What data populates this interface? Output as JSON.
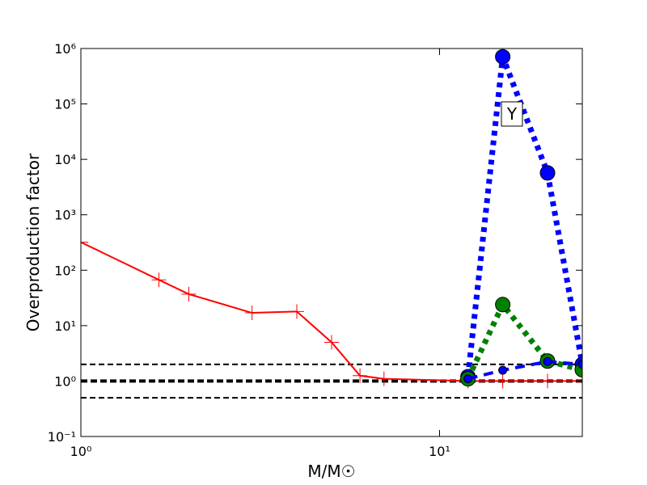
{
  "chart_data": {
    "type": "line",
    "xlabel": "M/M☉",
    "ylabel": "Overproduction factor",
    "xscale": "log",
    "yscale": "log",
    "xlim": [
      1,
      25
    ],
    "ylim": [
      0.1,
      1000000
    ],
    "xticks": [
      {
        "value": 1,
        "label": "10⁰"
      },
      {
        "value": 10,
        "label": "10¹"
      }
    ],
    "yticks": [
      {
        "value": 0.1,
        "label": "10⁻¹"
      },
      {
        "value": 1,
        "label": "10⁰"
      },
      {
        "value": 10,
        "label": "10¹"
      },
      {
        "value": 100,
        "label": "10²"
      },
      {
        "value": 1000,
        "label": "10³"
      },
      {
        "value": 10000,
        "label": "10⁴"
      },
      {
        "value": 100000,
        "label": "10⁵"
      },
      {
        "value": 1000000,
        "label": "10⁶"
      }
    ],
    "reference_lines": [
      0.5,
      1,
      2
    ],
    "annotation": "Y",
    "series": [
      {
        "color": "#ff0000",
        "style": "solid",
        "marker": "plus",
        "x": [
          1,
          1.65,
          2,
          3,
          4,
          5,
          6,
          7,
          12,
          15,
          20,
          25
        ],
        "values": [
          320,
          67,
          37,
          17,
          18,
          5,
          1.25,
          1.1,
          1.0,
          1.0,
          1.0,
          1.0
        ]
      },
      {
        "color": "#0000ff",
        "style": "dotted",
        "marker": "circle",
        "x": [
          12,
          15,
          20,
          25
        ],
        "values": [
          1.2,
          710000,
          5700,
          2.0
        ]
      },
      {
        "color": "#008000",
        "style": "dotted",
        "marker": "circle",
        "x": [
          12,
          15,
          20,
          25
        ],
        "values": [
          1.1,
          24,
          2.3,
          1.6
        ]
      },
      {
        "color": "#0000ff",
        "style": "dashed",
        "marker": "small-circle",
        "x": [
          12,
          15,
          20,
          25
        ],
        "values": [
          1.1,
          1.57,
          2.25,
          2.0
        ]
      }
    ]
  }
}
